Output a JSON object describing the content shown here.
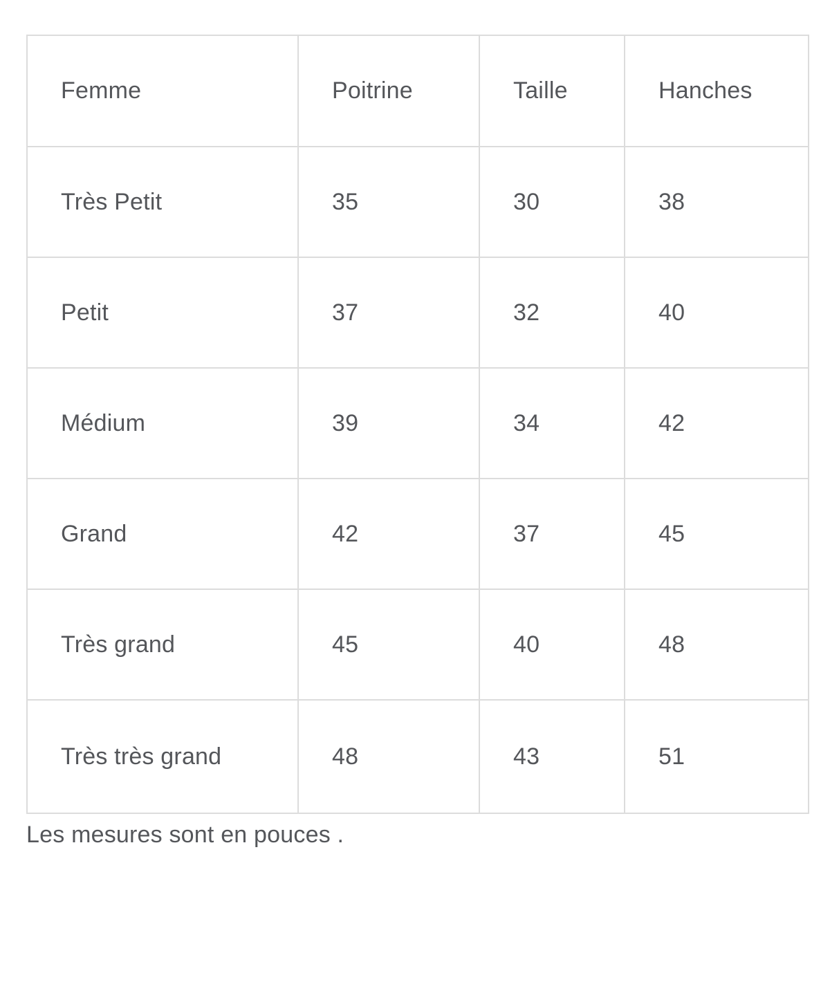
{
  "size_chart": {
    "headers": [
      "Femme",
      "Poitrine",
      "Taille",
      "Hanches"
    ],
    "rows": [
      [
        "Très Petit",
        "35",
        "30",
        "38"
      ],
      [
        "Petit",
        "37",
        "32",
        "40"
      ],
      [
        "Médium",
        "39",
        "34",
        "42"
      ],
      [
        "Grand",
        "42",
        "37",
        "45"
      ],
      [
        "Très grand",
        "45",
        "40",
        "48"
      ],
      [
        "Très très grand",
        "48",
        "43",
        "51"
      ]
    ],
    "footnote": "Les mesures sont en pouces .",
    "colors": {
      "text": "#54565a",
      "border": "#dcdcdc",
      "background": "#ffffff"
    }
  }
}
